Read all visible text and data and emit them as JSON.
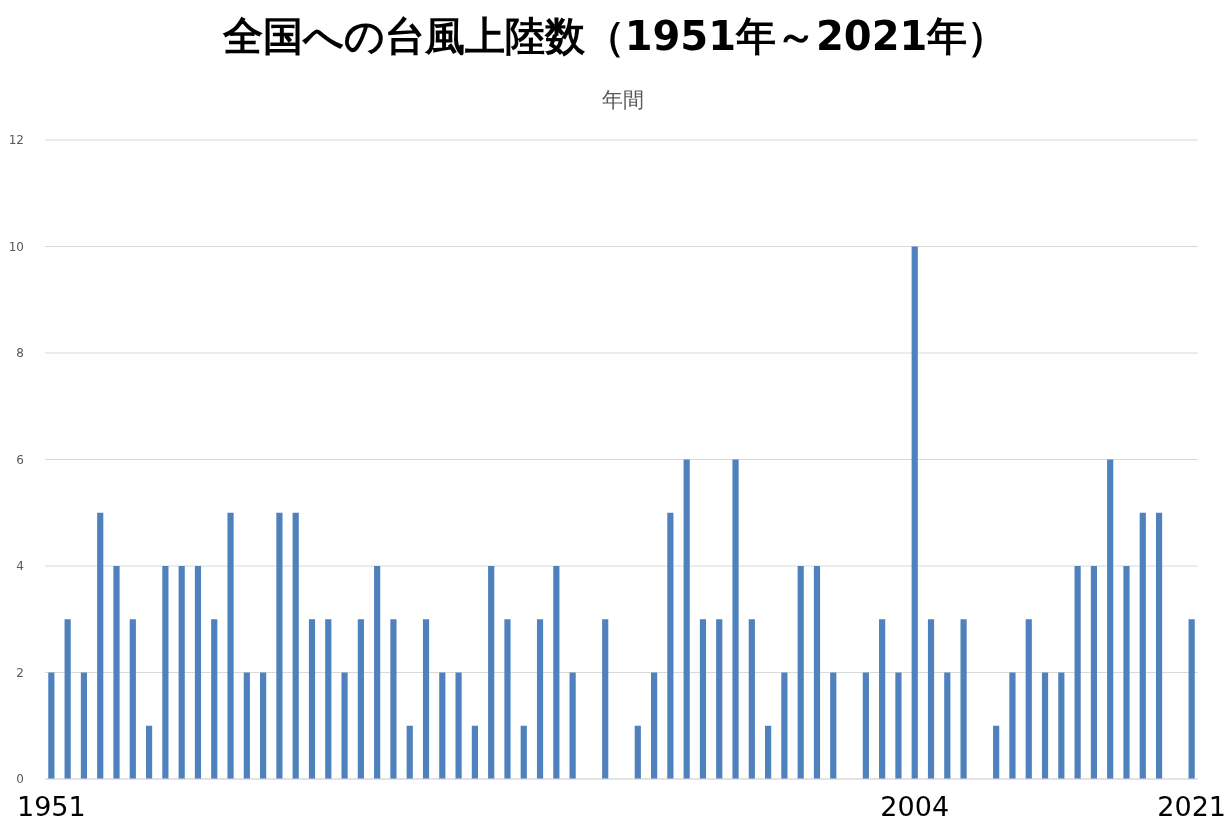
{
  "chart_data": {
    "type": "bar",
    "title": "全国への台風上陸数（1951年～2021年）",
    "subtitle": "年間",
    "categories": [
      "1951",
      null,
      null,
      null,
      null,
      null,
      null,
      null,
      null,
      null,
      null,
      null,
      null,
      null,
      null,
      null,
      null,
      null,
      null,
      null,
      null,
      null,
      null,
      null,
      null,
      null,
      null,
      null,
      null,
      null,
      null,
      null,
      null,
      null,
      null,
      null,
      null,
      null,
      null,
      null,
      null,
      null,
      null,
      null,
      null,
      null,
      null,
      null,
      null,
      null,
      null,
      null,
      null,
      "2004",
      null,
      null,
      null,
      null,
      null,
      null,
      null,
      null,
      null,
      null,
      null,
      null,
      null,
      null,
      null,
      null,
      "2021"
    ],
    "values": [
      2,
      3,
      2,
      5,
      4,
      3,
      1,
      4,
      4,
      4,
      3,
      5,
      2,
      2,
      5,
      5,
      3,
      3,
      2,
      3,
      4,
      3,
      1,
      3,
      2,
      2,
      1,
      4,
      3,
      1,
      3,
      4,
      2,
      0,
      3,
      0,
      1,
      2,
      5,
      6,
      3,
      3,
      6,
      3,
      1,
      2,
      4,
      4,
      2,
      0,
      2,
      3,
      2,
      10,
      3,
      2,
      3,
      0,
      1,
      2,
      3,
      2,
      2,
      4,
      4,
      6,
      4,
      5,
      5,
      0,
      3
    ],
    "color": "#4f81bd",
    "ylim": [
      0,
      12
    ],
    "yticks": [
      0,
      2,
      4,
      6,
      8,
      10,
      12
    ],
    "grid": "y"
  }
}
